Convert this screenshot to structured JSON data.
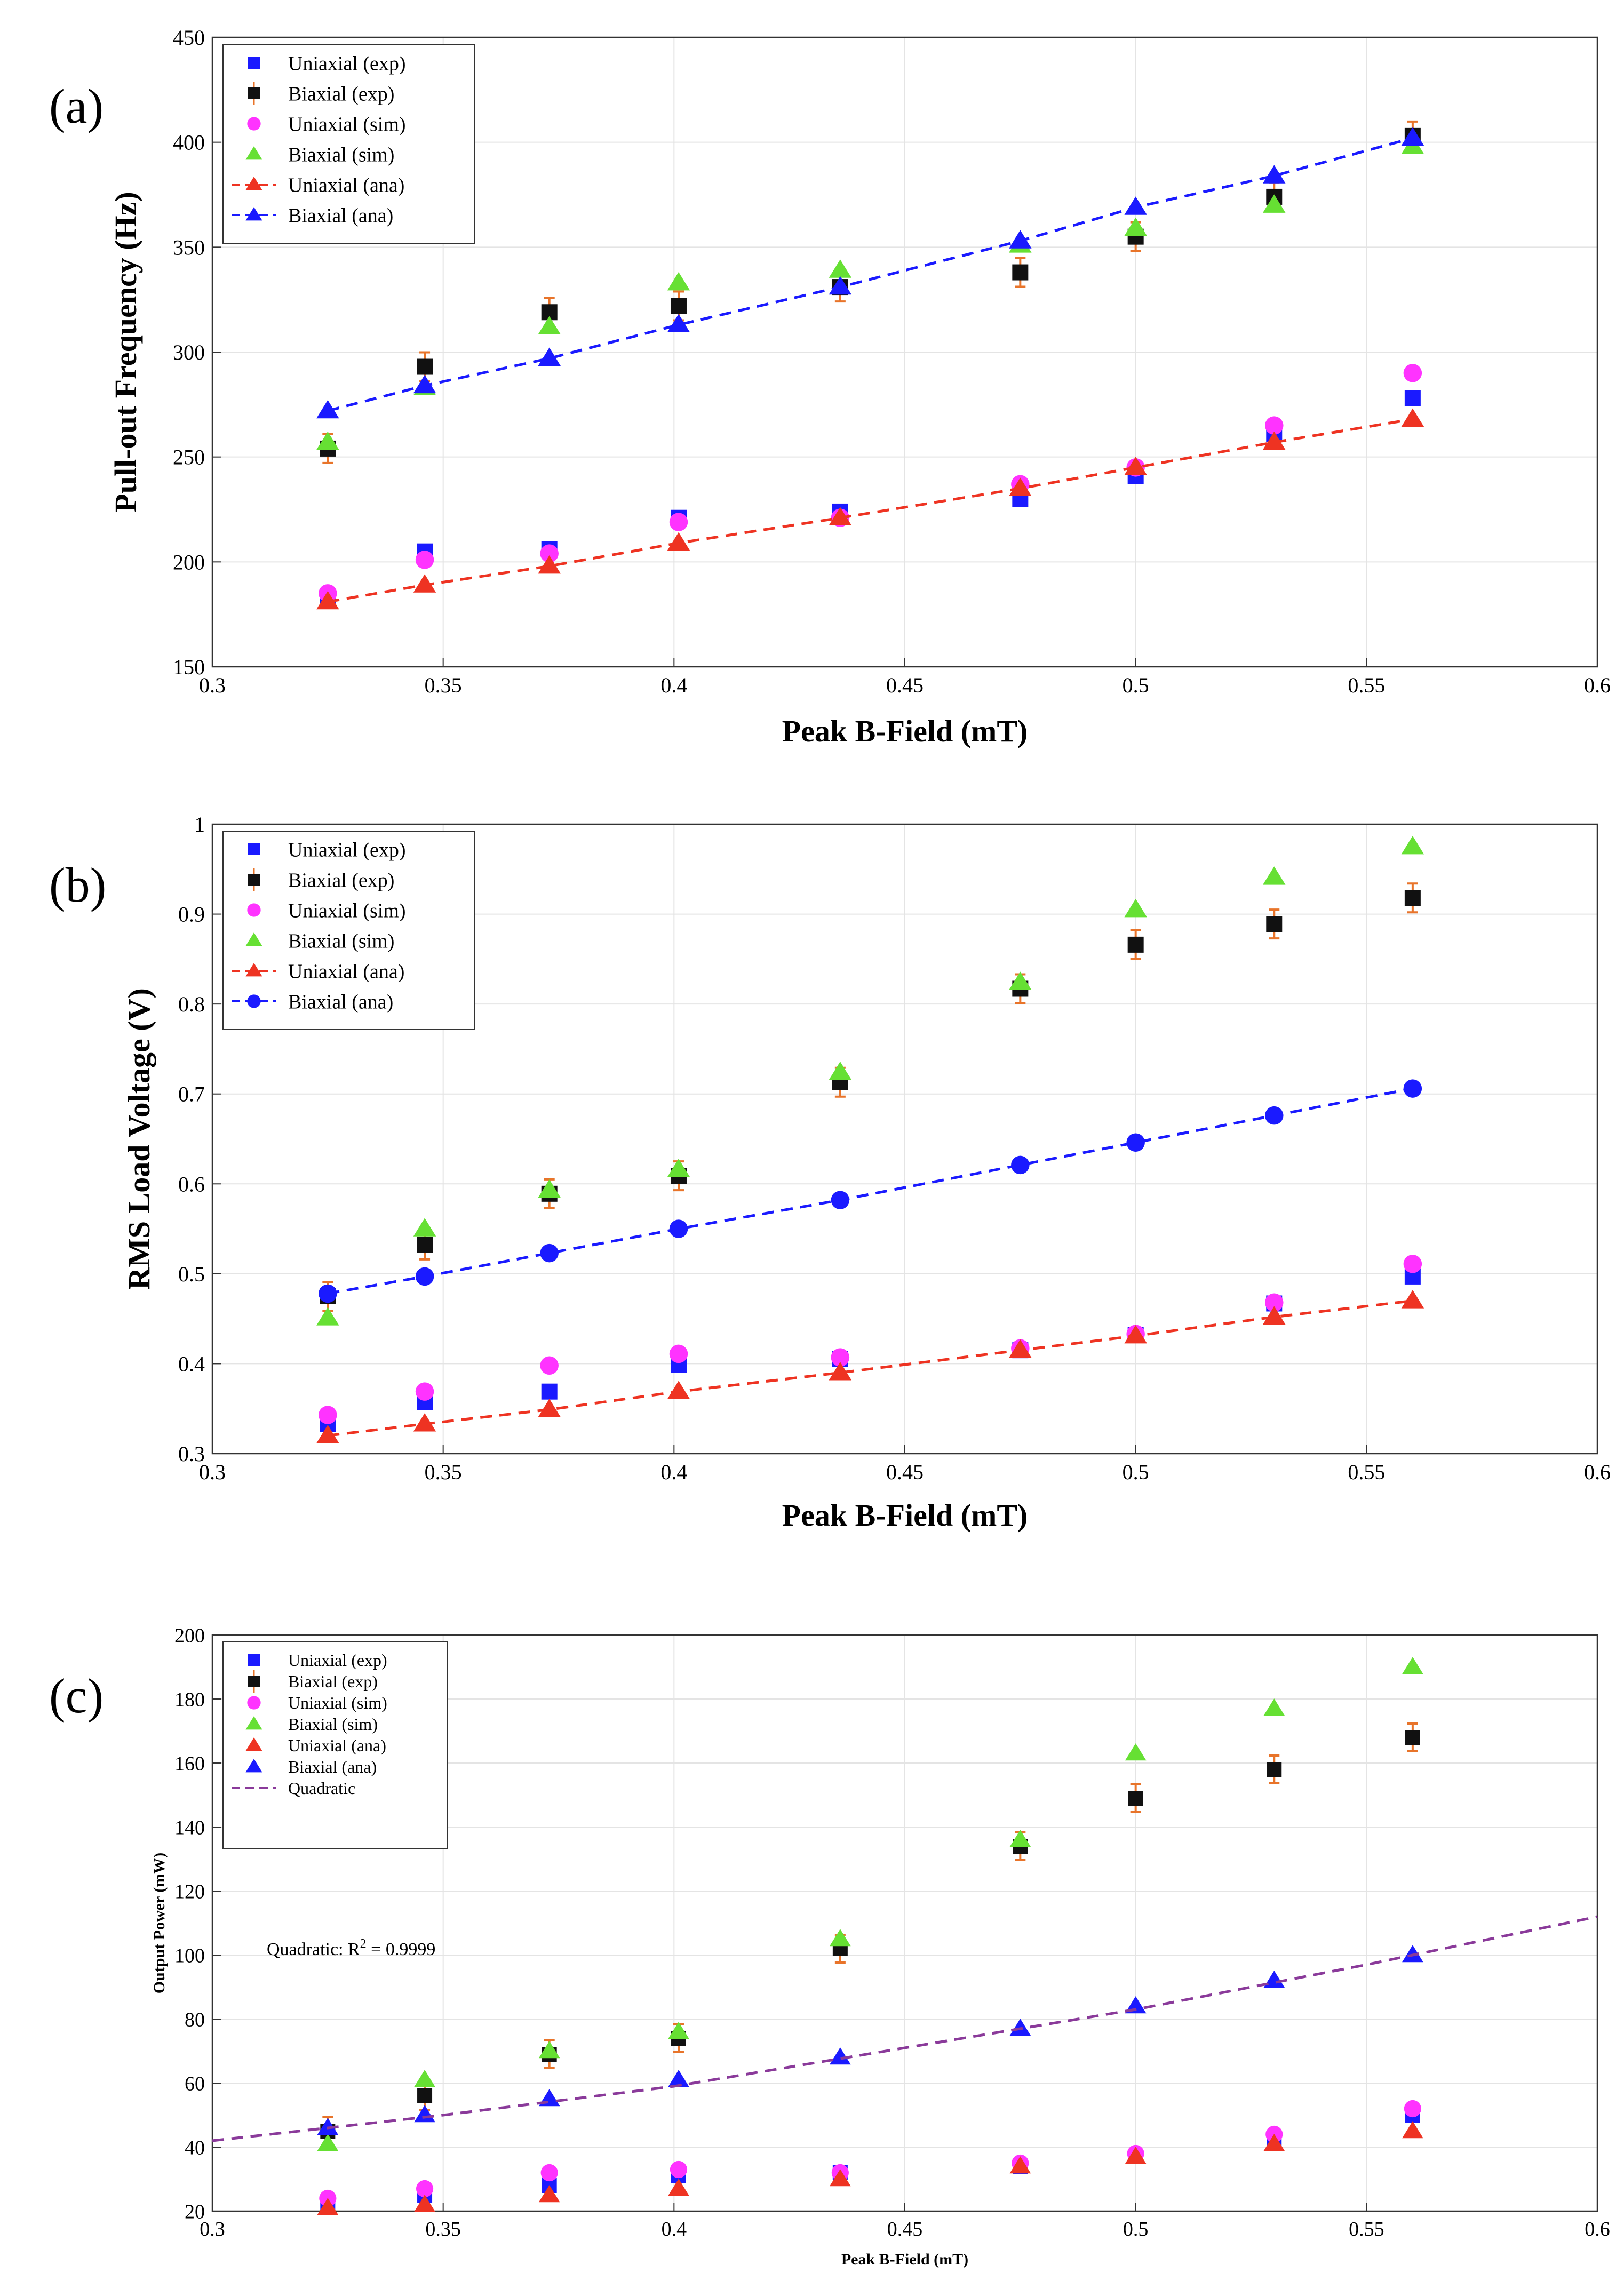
{
  "chart_data": [
    {
      "type": "scatter",
      "panel_label": "(a)",
      "xlabel": "Peak B-Field (mT)",
      "ylabel": "Pull-out Frequency (Hz)",
      "xlim": [
        0.3,
        0.6
      ],
      "ylim": [
        150,
        450
      ],
      "xticks": [
        "0.3",
        "0.35",
        "0.4",
        "0.45",
        "0.5",
        "0.55",
        "0.6"
      ],
      "yticks": [
        "150",
        "200",
        "250",
        "300",
        "350",
        "400",
        "450"
      ],
      "grid": true,
      "legend_position": "top-left",
      "x": [
        0.325,
        0.346,
        0.373,
        0.401,
        0.436,
        0.475,
        0.5,
        0.53,
        0.56
      ],
      "series": [
        {
          "name": "Uniaxial (exp)",
          "marker": "square",
          "color": "#1a1aff",
          "line": false,
          "values": [
            182,
            205,
            206,
            221,
            224,
            230,
            241,
            261,
            278
          ]
        },
        {
          "name": "Biaxial (exp)",
          "marker": "square",
          "color": "#111111",
          "errorbar": true,
          "line": false,
          "values": [
            254,
            293,
            319,
            322,
            331,
            338,
            355,
            374,
            403
          ]
        },
        {
          "name": "Uniaxial (sim)",
          "marker": "circle",
          "color": "#ff33ff",
          "line": false,
          "values": [
            185,
            201,
            204,
            219,
            221,
            237,
            245,
            265,
            290
          ]
        },
        {
          "name": "Biaxial (sim)",
          "marker": "triangle",
          "color": "#66e033",
          "line": false,
          "values": [
            257,
            283,
            312,
            333,
            339,
            351,
            359,
            370,
            398
          ]
        },
        {
          "name": "Uniaxial (ana)",
          "marker": "triangle",
          "color": "#ee3322",
          "line": true,
          "values": [
            181,
            189,
            198,
            209,
            221,
            235,
            245,
            257,
            268
          ]
        },
        {
          "name": "Biaxial (ana)",
          "marker": "triangle",
          "color": "#1a1aff",
          "line": true,
          "values": [
            272,
            284,
            297,
            313,
            331,
            353,
            369,
            384,
            402
          ]
        }
      ]
    },
    {
      "type": "scatter",
      "panel_label": "(b)",
      "xlabel": "Peak B-Field (mT)",
      "ylabel": "RMS Load Voltage (V)",
      "xlim": [
        0.3,
        0.6
      ],
      "ylim": [
        0.3,
        1.0
      ],
      "xticks": [
        "0.3",
        "0.35",
        "0.4",
        "0.45",
        "0.5",
        "0.55",
        "0.6"
      ],
      "yticks": [
        "0.3",
        "0.4",
        "0.5",
        "0.6",
        "0.7",
        "0.8",
        "0.9",
        "1"
      ],
      "grid": true,
      "legend_position": "top-left",
      "x": [
        0.325,
        0.346,
        0.373,
        0.401,
        0.436,
        0.475,
        0.5,
        0.53,
        0.56
      ],
      "series": [
        {
          "name": "Uniaxial (exp)",
          "marker": "square",
          "color": "#1a1aff",
          "line": false,
          "values": [
            0.333,
            0.357,
            0.369,
            0.399,
            0.405,
            0.415,
            0.432,
            0.467,
            0.497
          ]
        },
        {
          "name": "Biaxial (exp)",
          "marker": "square",
          "color": "#111111",
          "errorbar": true,
          "line": false,
          "values": [
            0.475,
            0.532,
            0.589,
            0.609,
            0.713,
            0.817,
            0.866,
            0.889,
            0.918
          ]
        },
        {
          "name": "Uniaxial (sim)",
          "marker": "circle",
          "color": "#ff33ff",
          "line": false,
          "values": [
            0.343,
            0.369,
            0.398,
            0.411,
            0.407,
            0.417,
            0.433,
            0.468,
            0.511
          ]
        },
        {
          "name": "Biaxial (sim)",
          "marker": "triangle",
          "color": "#66e033",
          "line": false,
          "values": [
            0.451,
            0.55,
            0.593,
            0.616,
            0.724,
            0.824,
            0.905,
            0.941,
            0.975
          ]
        },
        {
          "name": "Uniaxial (ana)",
          "marker": "triangle",
          "color": "#ee3322",
          "line": true,
          "values": [
            0.32,
            0.333,
            0.349,
            0.369,
            0.39,
            0.415,
            0.431,
            0.452,
            0.47
          ]
        },
        {
          "name": "Biaxial (ana)",
          "marker": "circle",
          "color": "#1a1aff",
          "line": true,
          "values": [
            0.478,
            0.497,
            0.523,
            0.55,
            0.582,
            0.621,
            0.646,
            0.676,
            0.706
          ]
        }
      ]
    },
    {
      "type": "scatter",
      "panel_label": "(c)",
      "xlabel": "Peak B-Field (mT)",
      "ylabel": "Output Power (mW)",
      "xlim": [
        0.3,
        0.6
      ],
      "ylim": [
        20,
        200
      ],
      "xticks": [
        "0.3",
        "0.35",
        "0.4",
        "0.45",
        "0.5",
        "0.55",
        "0.6"
      ],
      "yticks": [
        "20",
        "40",
        "60",
        "80",
        "100",
        "120",
        "140",
        "160",
        "180",
        "200"
      ],
      "grid": true,
      "legend_position": "top-left",
      "annotation": {
        "prefix": "Quadratic: R",
        "superscript": "2",
        "suffix": " = 0.9999"
      },
      "x": [
        0.325,
        0.346,
        0.373,
        0.401,
        0.436,
        0.475,
        0.5,
        0.53,
        0.56
      ],
      "series": [
        {
          "name": "Uniaxial (exp)",
          "marker": "square",
          "color": "#1a1aff",
          "line": false,
          "values": [
            22,
            25,
            28,
            31,
            32,
            34,
            37,
            42,
            50
          ]
        },
        {
          "name": "Biaxial (exp)",
          "marker": "square",
          "color": "#111111",
          "errorbar": true,
          "line": false,
          "values": [
            45,
            56,
            69,
            74,
            102,
            134,
            149,
            158,
            168
          ]
        },
        {
          "name": "Uniaxial (sim)",
          "marker": "circle",
          "color": "#ff33ff",
          "line": false,
          "values": [
            24,
            27,
            32,
            33,
            32,
            35,
            38,
            44,
            52
          ]
        },
        {
          "name": "Biaxial (sim)",
          "marker": "triangle",
          "color": "#66e033",
          "line": false,
          "values": [
            41,
            61,
            70,
            76,
            105,
            136,
            163,
            177,
            190
          ]
        },
        {
          "name": "Uniaxial (ana)",
          "marker": "triangle",
          "color": "#ee3322",
          "line": false,
          "values": [
            21,
            22,
            25,
            27,
            30,
            34,
            37,
            41,
            45
          ]
        },
        {
          "name": "Biaxial (ana)",
          "marker": "triangle",
          "color": "#1a1aff",
          "line": false,
          "values": [
            46,
            50,
            55,
            61,
            68,
            77,
            84,
            92,
            100
          ]
        },
        {
          "name": "Quadratic",
          "marker": "none",
          "color": "#8a3a9a",
          "line": true,
          "x": [
            0.3,
            0.35,
            0.4,
            0.45,
            0.5,
            0.55,
            0.6
          ],
          "values": [
            42,
            50,
            59,
            71,
            83,
            97,
            112
          ]
        }
      ]
    }
  ]
}
